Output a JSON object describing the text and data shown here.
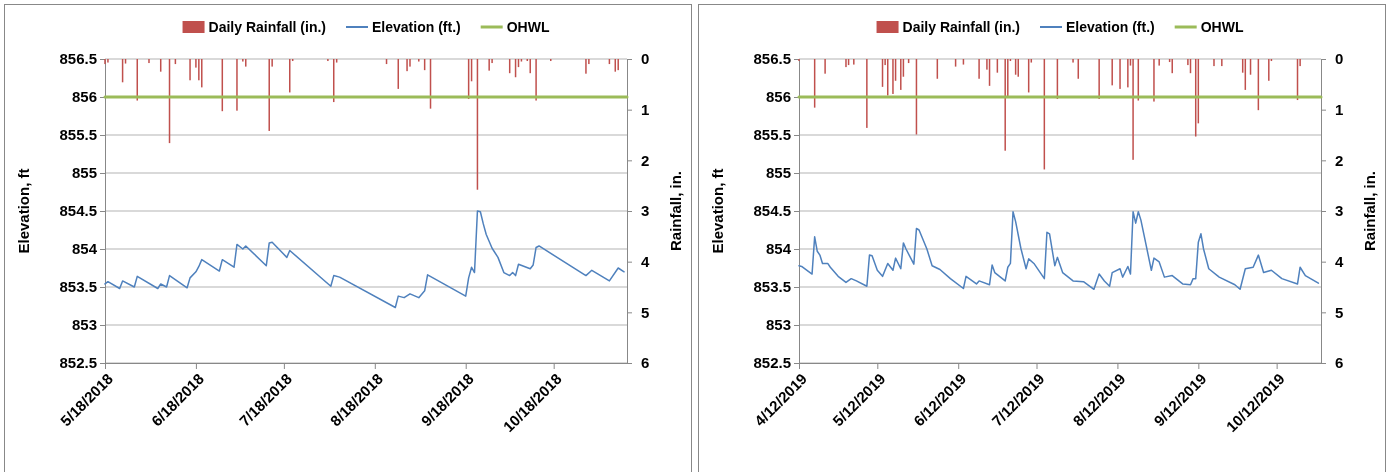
{
  "chart_data": [
    {
      "type": "line",
      "ylabel": "Elevation, ft",
      "y2label": "Rainfall, in.",
      "legend": "top",
      "grid": "y",
      "xlim": [
        "2018-05-18",
        "2018-11-12"
      ],
      "xticks": [
        {
          "value": "2018-05-18",
          "label": "5/18/2018"
        },
        {
          "value": "2018-06-18",
          "label": "6/18/2018"
        },
        {
          "value": "2018-07-18",
          "label": "7/18/2018"
        },
        {
          "value": "2018-08-18",
          "label": "8/18/2018"
        },
        {
          "value": "2018-09-18",
          "label": "9/18/2018"
        },
        {
          "value": "2018-10-18",
          "label": "10/18/2018"
        }
      ],
      "ylim": [
        852.5,
        856.5
      ],
      "yticks": [
        852.5,
        853,
        853.5,
        854,
        854.5,
        855,
        855.5,
        856,
        856.5
      ],
      "y2lim": [
        6,
        0
      ],
      "y2ticks": [
        0,
        1,
        2,
        3,
        4,
        5,
        6
      ],
      "series": [
        {
          "name": "Daily Rainfall (in.)",
          "type": "bar",
          "axis": "y2",
          "color": "#c0504d",
          "x": [
            "2018-05-18",
            "2018-05-19",
            "2018-05-24",
            "2018-05-25",
            "2018-05-29",
            "2018-06-02",
            "2018-06-06",
            "2018-06-09",
            "2018-06-11",
            "2018-06-16",
            "2018-06-18",
            "2018-06-19",
            "2018-06-20",
            "2018-06-27",
            "2018-07-02",
            "2018-07-04",
            "2018-07-05",
            "2018-07-13",
            "2018-07-14",
            "2018-07-20",
            "2018-07-21",
            "2018-08-02",
            "2018-08-04",
            "2018-08-05",
            "2018-08-22",
            "2018-08-26",
            "2018-08-29",
            "2018-08-30",
            "2018-09-02",
            "2018-09-04",
            "2018-09-06",
            "2018-09-19",
            "2018-09-20",
            "2018-09-22",
            "2018-09-26",
            "2018-09-27",
            "2018-10-03",
            "2018-10-05",
            "2018-10-06",
            "2018-10-07",
            "2018-10-09",
            "2018-10-10",
            "2018-10-12",
            "2018-10-17",
            "2018-10-29",
            "2018-10-30",
            "2018-11-06",
            "2018-11-08",
            "2018-11-09"
          ],
          "values": [
            0.1,
            0.07,
            0.46,
            0.09,
            0.82,
            0.08,
            0.25,
            1.66,
            0.1,
            0.42,
            0.17,
            0.42,
            0.56,
            1.03,
            1.02,
            0.05,
            0.15,
            1.42,
            0.15,
            0.66,
            0.04,
            0.04,
            0.85,
            0.07,
            0.1,
            0.59,
            0.24,
            0.15,
            0.05,
            0.22,
            0.98,
            0.79,
            0.44,
            2.58,
            0.23,
            0.08,
            0.28,
            0.36,
            0.16,
            0.05,
            0.04,
            0.28,
            0.82,
            0.04,
            0.29,
            0.1,
            0.1,
            0.25,
            0.22
          ]
        },
        {
          "name": "Elevation (ft.)",
          "color": "#4f81bd",
          "x": [
            "2018-05-18",
            "2018-05-19",
            "2018-05-23",
            "2018-05-24",
            "2018-05-28",
            "2018-05-29",
            "2018-06-05",
            "2018-06-06",
            "2018-06-08",
            "2018-06-09",
            "2018-06-15",
            "2018-06-16",
            "2018-06-18",
            "2018-06-19",
            "2018-06-20",
            "2018-06-26",
            "2018-06-27",
            "2018-07-01",
            "2018-07-02",
            "2018-07-04",
            "2018-07-05",
            "2018-07-12",
            "2018-07-13",
            "2018-07-14",
            "2018-07-19",
            "2018-07-20",
            "2018-08-03",
            "2018-08-04",
            "2018-08-06",
            "2018-08-25",
            "2018-08-26",
            "2018-08-28",
            "2018-08-30",
            "2018-09-02",
            "2018-09-04",
            "2018-09-05",
            "2018-09-18",
            "2018-09-19",
            "2018-09-20",
            "2018-09-21",
            "2018-09-22",
            "2018-09-23",
            "2018-09-24",
            "2018-09-25",
            "2018-09-27",
            "2018-09-29",
            "2018-10-01",
            "2018-10-03",
            "2018-10-04",
            "2018-10-05",
            "2018-10-06",
            "2018-10-10",
            "2018-10-11",
            "2018-10-12",
            "2018-10-13",
            "2018-10-29",
            "2018-10-31",
            "2018-11-06",
            "2018-11-09",
            "2018-11-11"
          ],
          "values": [
            853.54,
            853.57,
            853.48,
            853.58,
            853.5,
            853.64,
            853.48,
            853.54,
            853.5,
            853.65,
            853.49,
            853.62,
            853.7,
            853.77,
            853.86,
            853.71,
            853.86,
            853.76,
            854.06,
            854.0,
            854.04,
            853.78,
            854.08,
            854.09,
            853.89,
            853.98,
            853.51,
            853.65,
            853.63,
            853.23,
            853.38,
            853.36,
            853.41,
            853.36,
            853.45,
            853.66,
            853.38,
            853.62,
            853.76,
            853.69,
            854.5,
            854.49,
            854.33,
            854.19,
            854.01,
            853.89,
            853.69,
            853.65,
            853.69,
            853.65,
            853.8,
            853.74,
            853.79,
            854.02,
            854.04,
            853.65,
            853.72,
            853.58,
            853.75,
            853.7
          ]
        },
        {
          "name": "OHWL",
          "color": "#9bbb59",
          "x": [
            "2018-05-18",
            "2018-11-12"
          ],
          "values": [
            856,
            856
          ]
        }
      ]
    },
    {
      "type": "line",
      "ylabel": "Elevation, ft",
      "y2label": "Rainfall, in.",
      "legend": "top",
      "grid": "y",
      "xlim": [
        "2019-04-12",
        "2019-10-29"
      ],
      "xticks": [
        {
          "value": "2019-04-12",
          "label": "4/12/2019"
        },
        {
          "value": "2019-05-12",
          "label": "5/12/2019"
        },
        {
          "value": "2019-06-12",
          "label": "6/12/2019"
        },
        {
          "value": "2019-07-12",
          "label": "7/12/2019"
        },
        {
          "value": "2019-08-12",
          "label": "8/12/2019"
        },
        {
          "value": "2019-09-12",
          "label": "9/12/2019"
        },
        {
          "value": "2019-10-12",
          "label": "10/12/2019"
        }
      ],
      "ylim": [
        852.5,
        856.5
      ],
      "yticks": [
        852.5,
        853,
        853.5,
        854,
        854.5,
        855,
        855.5,
        856,
        856.5
      ],
      "y2lim": [
        6,
        0
      ],
      "y2ticks": [
        0,
        1,
        2,
        3,
        4,
        5,
        6
      ],
      "series": [
        {
          "name": "Daily Rainfall (in.)",
          "type": "bar",
          "axis": "y2",
          "color": "#c0504d",
          "x": [
            "2019-04-12",
            "2019-04-18",
            "2019-04-22",
            "2019-04-30",
            "2019-05-01",
            "2019-05-03",
            "2019-05-08",
            "2019-05-14",
            "2019-05-15",
            "2019-05-16",
            "2019-05-18",
            "2019-05-19",
            "2019-05-21",
            "2019-05-22",
            "2019-05-24",
            "2019-05-27",
            "2019-06-04",
            "2019-06-11",
            "2019-06-14",
            "2019-06-20",
            "2019-06-23",
            "2019-06-24",
            "2019-06-27",
            "2019-06-30",
            "2019-07-01",
            "2019-07-02",
            "2019-07-04",
            "2019-07-05",
            "2019-07-09",
            "2019-07-10",
            "2019-07-15",
            "2019-07-20",
            "2019-07-26",
            "2019-07-28",
            "2019-08-05",
            "2019-08-10",
            "2019-08-13",
            "2019-08-16",
            "2019-08-17",
            "2019-08-18",
            "2019-08-20",
            "2019-08-26",
            "2019-08-28",
            "2019-09-01",
            "2019-09-02",
            "2019-09-08",
            "2019-09-09",
            "2019-09-11",
            "2019-09-12",
            "2019-09-18",
            "2019-09-21",
            "2019-09-29",
            "2019-09-30",
            "2019-10-02",
            "2019-10-05",
            "2019-10-09",
            "2019-10-10",
            "2019-10-20",
            "2019-10-21"
          ],
          "values": [
            0.04,
            0.96,
            0.29,
            0.16,
            0.12,
            0.11,
            1.36,
            0.55,
            0.12,
            0.72,
            0.69,
            0.43,
            0.61,
            0.35,
            0.08,
            1.49,
            0.39,
            0.15,
            0.11,
            0.39,
            0.21,
            0.53,
            0.27,
            1.81,
            0.73,
            0.04,
            0.31,
            0.35,
            0.66,
            0.07,
            2.18,
            0.79,
            0.07,
            0.39,
            0.79,
            0.52,
            0.59,
            0.56,
            0.13,
            1.99,
            0.82,
            0.84,
            0.13,
            0.06,
            0.28,
            0.12,
            0.28,
            1.53,
            1.27,
            0.14,
            0.14,
            0.27,
            0.61,
            0.31,
            1.01,
            0.43,
            0.04,
            0.81,
            0.14
          ]
        },
        {
          "name": "Elevation (ft.)",
          "color": "#4f81bd",
          "x": [
            "2019-04-12",
            "2019-04-13",
            "2019-04-17",
            "2019-04-18",
            "2019-04-19",
            "2019-04-20",
            "2019-04-21",
            "2019-04-23",
            "2019-04-24",
            "2019-04-27",
            "2019-04-30",
            "2019-05-02",
            "2019-05-04",
            "2019-05-08",
            "2019-05-09",
            "2019-05-10",
            "2019-05-12",
            "2019-05-14",
            "2019-05-16",
            "2019-05-18",
            "2019-05-19",
            "2019-05-21",
            "2019-05-22",
            "2019-05-23",
            "2019-05-26",
            "2019-05-27",
            "2019-05-28",
            "2019-05-31",
            "2019-06-02",
            "2019-06-05",
            "2019-06-09",
            "2019-06-14",
            "2019-06-15",
            "2019-06-19",
            "2019-06-20",
            "2019-06-24",
            "2019-06-25",
            "2019-06-26",
            "2019-06-30",
            "2019-07-01",
            "2019-07-02",
            "2019-07-03",
            "2019-07-04",
            "2019-07-06",
            "2019-07-08",
            "2019-07-09",
            "2019-07-11",
            "2019-07-15",
            "2019-07-16",
            "2019-07-17",
            "2019-07-19",
            "2019-07-20",
            "2019-07-22",
            "2019-07-26",
            "2019-07-30",
            "2019-08-03",
            "2019-08-05",
            "2019-08-07",
            "2019-08-09",
            "2019-08-10",
            "2019-08-13",
            "2019-08-14",
            "2019-08-16",
            "2019-08-17",
            "2019-08-18",
            "2019-08-19",
            "2019-08-20",
            "2019-08-21",
            "2019-08-23",
            "2019-08-25",
            "2019-08-26",
            "2019-08-28",
            "2019-08-30",
            "2019-09-02",
            "2019-09-06",
            "2019-09-09",
            "2019-09-10",
            "2019-09-11",
            "2019-09-12",
            "2019-09-13",
            "2019-09-14",
            "2019-09-16",
            "2019-09-20",
            "2019-09-26",
            "2019-09-28",
            "2019-09-30",
            "2019-10-03",
            "2019-10-05",
            "2019-10-07",
            "2019-10-10",
            "2019-10-14",
            "2019-10-20",
            "2019-10-21",
            "2019-10-23",
            "2019-10-28"
          ],
          "values": [
            853.78,
            853.77,
            853.67,
            854.16,
            853.97,
            853.92,
            853.81,
            853.81,
            853.76,
            853.64,
            853.56,
            853.61,
            853.58,
            853.51,
            853.92,
            853.91,
            853.72,
            853.64,
            853.81,
            853.72,
            853.88,
            853.74,
            854.08,
            854.0,
            853.8,
            854.27,
            854.25,
            854.0,
            853.78,
            853.73,
            853.61,
            853.48,
            853.64,
            853.54,
            853.58,
            853.53,
            853.79,
            853.69,
            853.58,
            853.76,
            853.81,
            854.49,
            854.36,
            854.01,
            853.74,
            853.87,
            853.81,
            853.61,
            854.22,
            854.2,
            853.78,
            853.89,
            853.69,
            853.58,
            853.57,
            853.47,
            853.67,
            853.58,
            853.51,
            853.69,
            853.74,
            853.63,
            853.77,
            853.67,
            854.49,
            854.34,
            854.49,
            854.38,
            854.05,
            853.72,
            853.88,
            853.83,
            853.63,
            853.65,
            853.54,
            853.53,
            853.61,
            853.61,
            854.09,
            854.2,
            854.0,
            853.74,
            853.63,
            853.53,
            853.47,
            853.74,
            853.76,
            853.92,
            853.69,
            853.72,
            853.61,
            853.54,
            853.76,
            853.65,
            853.55
          ]
        },
        {
          "name": "OHWL",
          "color": "#9bbb59",
          "x": [
            "2019-04-12",
            "2019-10-29"
          ],
          "values": [
            856,
            856
          ]
        }
      ]
    }
  ]
}
